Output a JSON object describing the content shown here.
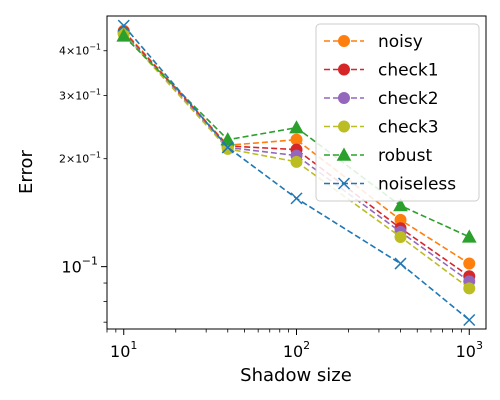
{
  "chart_data": {
    "type": "line",
    "xlabel": "Shadow size",
    "ylabel": "Error",
    "xscale": "log",
    "yscale": "log",
    "xlim": [
      8,
      1250
    ],
    "ylim": [
      0.067,
      0.5
    ],
    "grid": false,
    "legend_position": "top-right",
    "x": [
      10,
      40,
      100,
      400,
      1000
    ],
    "x_ticks": [
      {
        "value": 10,
        "base": "10",
        "exp": "1"
      },
      {
        "value": 100,
        "base": "10",
        "exp": "2"
      },
      {
        "value": 1000,
        "base": "10",
        "exp": "3"
      }
    ],
    "y_ticks": [
      {
        "value": 0.4,
        "mant": "4",
        "base": "10",
        "exp": "−1",
        "style": "minor"
      },
      {
        "value": 0.3,
        "mant": "3",
        "base": "10",
        "exp": "−1",
        "style": "minor"
      },
      {
        "value": 0.2,
        "mant": "2",
        "base": "10",
        "exp": "−1",
        "style": "minor"
      },
      {
        "value": 0.1,
        "mant": "",
        "base": "10",
        "exp": "−1",
        "style": "major"
      }
    ],
    "series": [
      {
        "name": "noisy",
        "color": "#ff7f0e",
        "marker": "circle",
        "values": [
          0.455,
          0.218,
          0.226,
          0.135,
          0.102
        ]
      },
      {
        "name": "check1",
        "color": "#d62728",
        "marker": "circle",
        "values": [
          0.452,
          0.217,
          0.212,
          0.128,
          0.094
        ]
      },
      {
        "name": "check2",
        "color": "#9467bd",
        "marker": "circle",
        "values": [
          0.448,
          0.215,
          0.204,
          0.125,
          0.091
        ]
      },
      {
        "name": "check3",
        "color": "#bcbd22",
        "marker": "circle",
        "values": [
          0.445,
          0.213,
          0.196,
          0.121,
          0.087
        ]
      },
      {
        "name": "robust",
        "color": "#2ca02c",
        "marker": "triangle",
        "values": [
          0.44,
          0.226,
          0.244,
          0.148,
          0.121
        ]
      },
      {
        "name": "noiseless",
        "color": "#1f77b4",
        "marker": "x",
        "values": [
          0.47,
          0.215,
          0.155,
          0.102,
          0.071
        ]
      }
    ]
  }
}
